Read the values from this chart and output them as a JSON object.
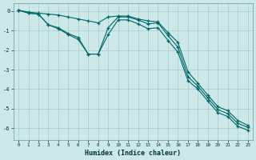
{
  "bg_color": "#cce8e8",
  "grid_color": "#aacccc",
  "line_color": "#006666",
  "xlabel": "Humidex (Indice chaleur)",
  "ylim": [
    -6.6,
    0.4
  ],
  "xlim": [
    -0.5,
    23.5
  ],
  "series": [
    {
      "x": [
        0,
        1,
        2,
        3,
        4,
        5,
        6,
        7,
        8,
        9,
        10,
        11,
        12,
        13,
        14,
        15,
        16,
        17,
        18,
        19,
        20,
        21,
        22,
        23
      ],
      "y": [
        0.05,
        -0.05,
        -0.1,
        -0.15,
        -0.2,
        -0.3,
        -0.4,
        -0.5,
        -0.6,
        -0.3,
        -0.25,
        -0.25,
        -0.4,
        -0.5,
        -0.55,
        -1.1,
        -1.6,
        -3.1,
        -3.7,
        -4.3,
        -4.9,
        -5.1,
        -5.6,
        -5.85
      ]
    },
    {
      "x": [
        0,
        1,
        2,
        3,
        4,
        5,
        6,
        7,
        8,
        9,
        10,
        11,
        12,
        13,
        14,
        15,
        16,
        17,
        18,
        19,
        20,
        21,
        22,
        23
      ],
      "y": [
        0.05,
        -0.1,
        -0.15,
        -0.7,
        -0.85,
        -1.15,
        -1.35,
        -2.2,
        -2.2,
        -0.85,
        -0.3,
        -0.3,
        -0.45,
        -0.65,
        -0.6,
        -1.25,
        -1.85,
        -3.35,
        -3.85,
        -4.45,
        -5.05,
        -5.25,
        -5.75,
        -5.95
      ]
    },
    {
      "x": [
        0,
        1,
        2,
        3,
        4,
        5,
        6,
        7,
        8,
        9,
        10,
        11,
        12,
        13,
        14,
        15,
        16,
        17,
        18,
        19,
        20,
        21,
        22,
        23
      ],
      "y": [
        0.05,
        -0.1,
        -0.15,
        -0.7,
        -0.9,
        -1.2,
        -1.45,
        -2.2,
        -2.2,
        -1.2,
        -0.45,
        -0.45,
        -0.65,
        -0.9,
        -0.85,
        -1.5,
        -2.1,
        -3.55,
        -4.0,
        -4.6,
        -5.2,
        -5.4,
        -5.9,
        -6.1
      ]
    }
  ]
}
